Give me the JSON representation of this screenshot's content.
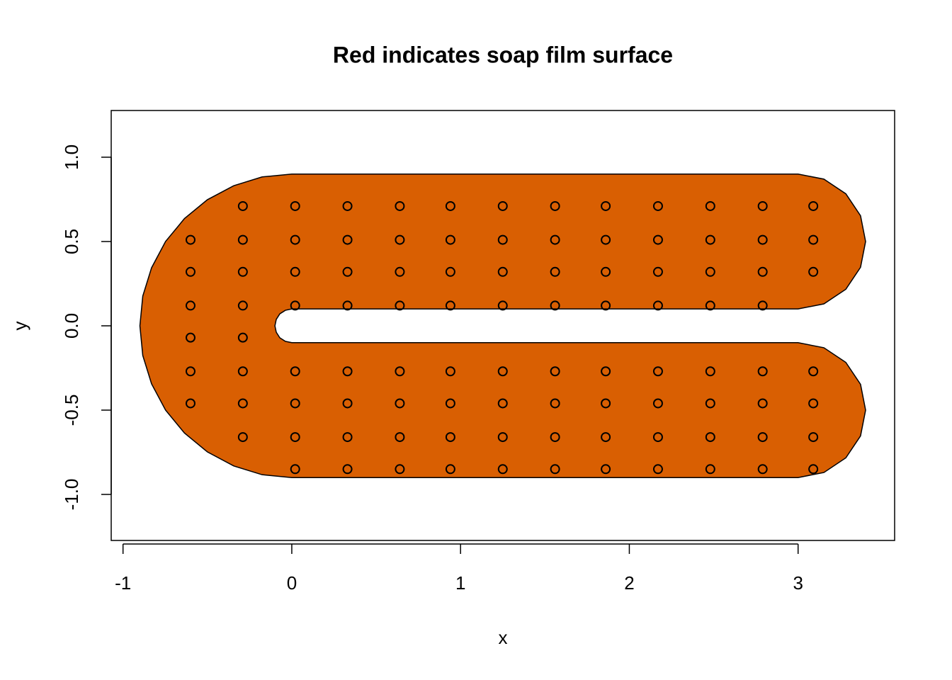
{
  "chart_data": {
    "type": "scatter",
    "title": "Red indicates soap film surface",
    "xlabel": "x",
    "ylabel": "y",
    "xlim": [
      -1.07,
      3.572
    ],
    "ylim": [
      -1.273,
      1.277
    ],
    "xticks": [
      -1,
      0,
      1,
      2,
      3
    ],
    "yticks": [
      {
        "value": -1,
        "label": "-1.0"
      },
      {
        "value": -0.5,
        "label": "-0.5"
      },
      {
        "value": 0,
        "label": "0.0"
      },
      {
        "value": 0.5,
        "label": "0.5"
      },
      {
        "value": 1,
        "label": "1.0"
      }
    ],
    "color": "#000000",
    "boundary": {
      "color": "#D95F02",
      "x": [
        0,
        3,
        3.153,
        3.283,
        3.37,
        3.4,
        3.37,
        3.283,
        3.153,
        3,
        0,
        -0.038,
        -0.071,
        -0.092,
        -0.1,
        -0.092,
        -0.071,
        -0.038,
        0,
        3,
        3.153,
        3.283,
        3.37,
        3.4,
        3.37,
        3.283,
        3.153,
        3,
        0,
        -0.176,
        -0.344,
        -0.5,
        -0.636,
        -0.748,
        -0.831,
        -0.883,
        -0.9,
        -0.883,
        -0.831,
        -0.748,
        -0.636,
        -0.5,
        -0.344,
        -0.176
      ],
      "y": [
        -0.9,
        -0.9,
        -0.87,
        -0.783,
        -0.653,
        -0.5,
        -0.347,
        -0.217,
        -0.13,
        -0.1,
        -0.1,
        -0.092,
        -0.071,
        -0.038,
        0,
        0.038,
        0.071,
        0.092,
        0.1,
        0.1,
        0.13,
        0.217,
        0.347,
        0.5,
        0.653,
        0.783,
        0.87,
        0.9,
        0.9,
        0.883,
        0.831,
        0.748,
        0.636,
        0.5,
        0.344,
        0.176,
        0,
        -0.176,
        -0.344,
        -0.5,
        -0.636,
        -0.748,
        -0.831,
        -0.883
      ]
    },
    "x": [
      -0.29,
      0.02,
      0.33,
      0.64,
      0.94,
      1.25,
      1.56,
      1.86,
      2.17,
      2.48,
      2.79,
      3.09,
      -0.6,
      -0.29,
      0.02,
      0.33,
      0.64,
      0.94,
      1.25,
      1.56,
      1.86,
      2.17,
      2.48,
      2.79,
      3.09,
      -0.6,
      -0.29,
      0.02,
      0.33,
      0.64,
      0.94,
      1.25,
      1.56,
      1.86,
      2.17,
      2.48,
      2.79,
      3.09,
      -0.6,
      -0.29,
      0.02,
      0.33,
      0.64,
      0.94,
      1.25,
      1.56,
      1.86,
      2.17,
      2.48,
      2.79,
      -0.6,
      -0.29,
      -0.6,
      -0.29,
      0.02,
      0.33,
      0.64,
      0.94,
      1.25,
      1.56,
      1.86,
      2.17,
      2.48,
      2.79,
      3.09,
      -0.6,
      -0.29,
      0.02,
      0.33,
      0.64,
      0.94,
      1.25,
      1.56,
      1.86,
      2.17,
      2.48,
      2.79,
      3.09,
      -0.29,
      0.02,
      0.33,
      0.64,
      0.94,
      1.25,
      1.56,
      1.86,
      2.17,
      2.48,
      2.79,
      3.09,
      0.02,
      0.33,
      0.64,
      0.94,
      1.25,
      1.56,
      1.86,
      2.17,
      2.48,
      2.79,
      3.09
    ],
    "y": [
      0.71,
      0.71,
      0.71,
      0.71,
      0.71,
      0.71,
      0.71,
      0.71,
      0.71,
      0.71,
      0.71,
      0.71,
      0.51,
      0.51,
      0.51,
      0.51,
      0.51,
      0.51,
      0.51,
      0.51,
      0.51,
      0.51,
      0.51,
      0.51,
      0.51,
      0.32,
      0.32,
      0.32,
      0.32,
      0.32,
      0.32,
      0.32,
      0.32,
      0.32,
      0.32,
      0.32,
      0.32,
      0.32,
      0.12,
      0.12,
      0.12,
      0.12,
      0.12,
      0.12,
      0.12,
      0.12,
      0.12,
      0.12,
      0.12,
      0.12,
      -0.07,
      -0.07,
      -0.27,
      -0.27,
      -0.27,
      -0.27,
      -0.27,
      -0.27,
      -0.27,
      -0.27,
      -0.27,
      -0.27,
      -0.27,
      -0.27,
      -0.27,
      -0.46,
      -0.46,
      -0.46,
      -0.46,
      -0.46,
      -0.46,
      -0.46,
      -0.46,
      -0.46,
      -0.46,
      -0.46,
      -0.46,
      -0.46,
      -0.66,
      -0.66,
      -0.66,
      -0.66,
      -0.66,
      -0.66,
      -0.66,
      -0.66,
      -0.66,
      -0.66,
      -0.66,
      -0.66,
      -0.85,
      -0.85,
      -0.85,
      -0.85,
      -0.85,
      -0.85,
      -0.85,
      -0.85,
      -0.85,
      -0.85,
      -0.85
    ]
  }
}
